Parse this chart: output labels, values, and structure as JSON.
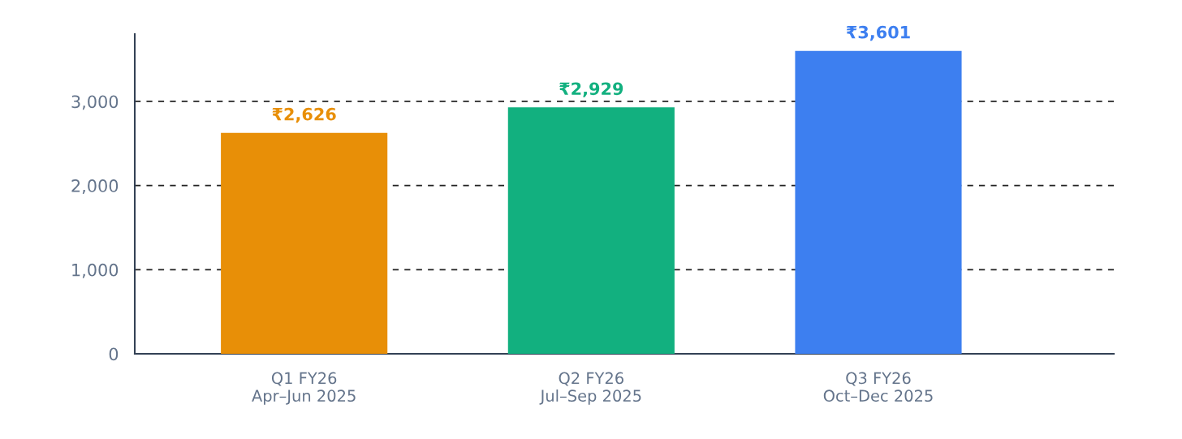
{
  "chart_data": {
    "type": "bar",
    "categories": [
      "Q1 FY26\nApr–Jun 2025",
      "Q2 FY26\nJul–Sep 2025",
      "Q3 FY26\nOct–Dec 2025"
    ],
    "values": [
      2626,
      2929,
      3601
    ],
    "colors": [
      "#e88f07",
      "#12b07f",
      "#3d7ff0"
    ],
    "value_labels": [
      "₹2,626",
      "₹2,929",
      "₹3,601"
    ],
    "ylim": [
      0,
      3800
    ],
    "yticks": [
      0,
      {
        "value": 1000,
        "label": "1,000"
      },
      {
        "value": 2000,
        "label": "2,000"
      },
      {
        "value": 3000,
        "label": "3,000"
      }
    ],
    "grid": "y",
    "legend": false
  }
}
